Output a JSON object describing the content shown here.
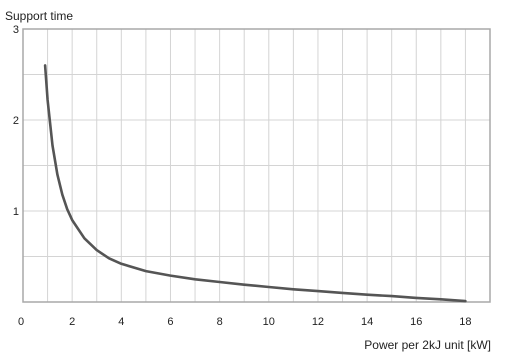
{
  "chart_data": {
    "type": "line",
    "title": "",
    "ylabel": "Support time",
    "xlabel": "Power per 2kJ unit [kW]",
    "xlim": [
      0,
      19
    ],
    "ylim": [
      0,
      3
    ],
    "grid": true,
    "xticks": [
      0,
      2,
      4,
      6,
      8,
      10,
      12,
      14,
      16,
      18
    ],
    "yticks": [
      1,
      2,
      3
    ],
    "x_gridlines": [
      1,
      2,
      3,
      4,
      5,
      6,
      7,
      8,
      9,
      10,
      11,
      12,
      13,
      14,
      15,
      16,
      17,
      18
    ],
    "y_gridlines": [
      0.5,
      1,
      1.5,
      2,
      2.5
    ],
    "series": [
      {
        "color": "#555555",
        "x": [
          0.9,
          1.0,
          1.2,
          1.4,
          1.6,
          1.8,
          2.0,
          2.5,
          3.0,
          3.5,
          4.0,
          5.0,
          6.0,
          7.0,
          8.0,
          9.0,
          10.0,
          11.0,
          12.0,
          13.0,
          14.0,
          15.0,
          16.0,
          17.0,
          18.0
        ],
        "y": [
          2.6,
          2.22,
          1.72,
          1.4,
          1.18,
          1.02,
          0.9,
          0.7,
          0.57,
          0.48,
          0.42,
          0.34,
          0.29,
          0.25,
          0.22,
          0.19,
          0.165,
          0.14,
          0.12,
          0.1,
          0.08,
          0.065,
          0.045,
          0.03,
          0.01
        ]
      }
    ]
  }
}
